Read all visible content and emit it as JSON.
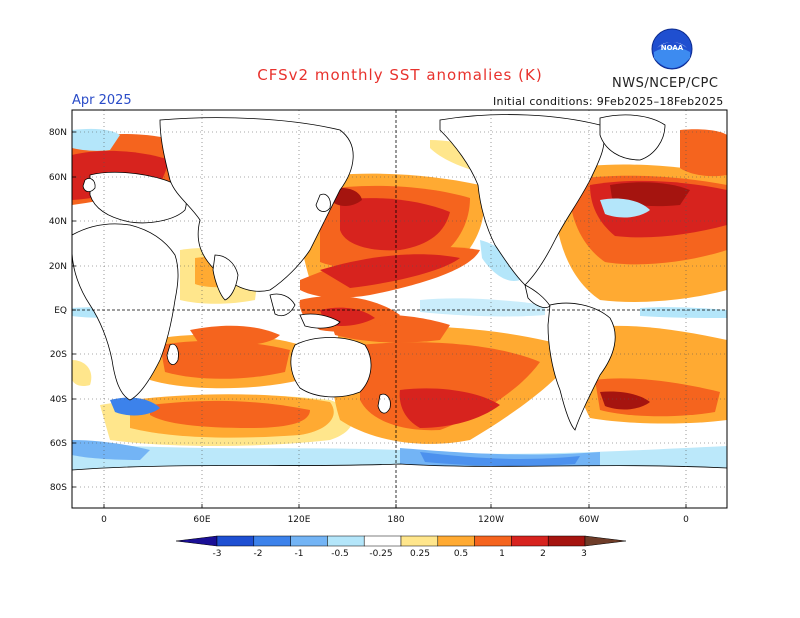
{
  "header": {
    "title": "CFSv2 monthly SST anomalies (K)",
    "agency": "NWS/NCEP/CPC",
    "logo_text": "NOAA",
    "month": "Apr 2025",
    "initial_conditions": "Initial conditions: 9Feb2025–18Feb2025"
  },
  "map": {
    "lat_labels": [
      "80N",
      "60N",
      "40N",
      "20N",
      "EQ",
      "20S",
      "40S",
      "60S",
      "80S"
    ],
    "lon_labels": [
      "0",
      "60E",
      "120E",
      "180",
      "120W",
      "60W",
      "0"
    ]
  },
  "colorbar": {
    "tick_labels": [
      "-3",
      "-2",
      "-1",
      "-0.5",
      "-0.25",
      "0.25",
      "0.5",
      "1",
      "2",
      "3"
    ],
    "colors": [
      "#1a0f96",
      "#1e4fd2",
      "#3c82eb",
      "#73b4f5",
      "#b4e6fa",
      "#ffffff",
      "#ffe68c",
      "#ffaa32",
      "#f5641e",
      "#d7231e",
      "#a5140f",
      "#6e3c28"
    ]
  },
  "colors": {
    "strong_warm": "#d7231e",
    "warm": "#f5641e",
    "mild_warm": "#ffaa32",
    "weak_warm": "#ffe68c",
    "weak_cool": "#b4e6fa",
    "cool": "#73b4f5",
    "strong_cool": "#3c82eb",
    "land": "#ffffff",
    "coast": "#000000"
  }
}
